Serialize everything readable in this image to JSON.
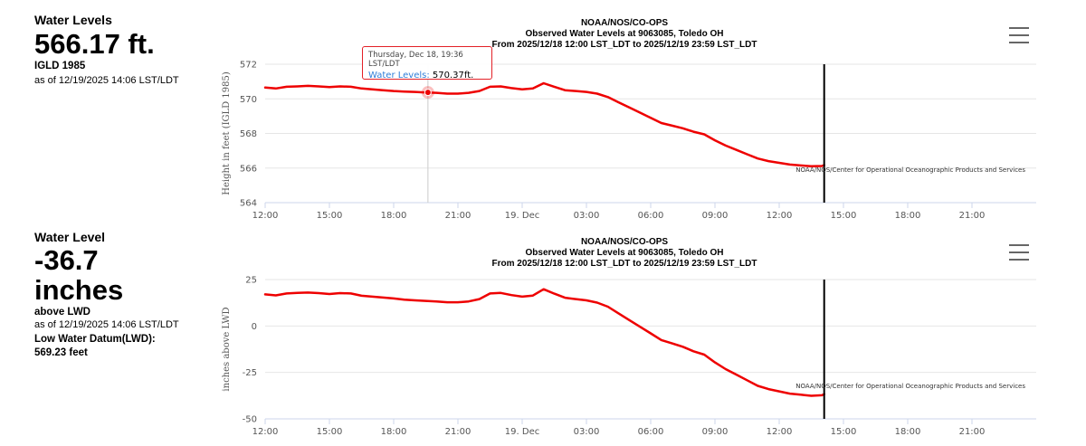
{
  "top": {
    "label": "Water Levels",
    "value": "566.17 ft.",
    "datum": "IGLD 1985",
    "asof": "as of 12/19/2025 14:06 LST/LDT"
  },
  "bottom": {
    "label": "Water Level",
    "value_line1": "-36.7",
    "value_line2": "inches",
    "datum": "above LWD",
    "asof": "as of 12/19/2025 14:06 LST/LDT",
    "lwd_label": "Low Water Datum(LWD):",
    "lwd_value": "569.23 feet"
  },
  "tooltip": {
    "header": "Thursday, Dec 18, 19:36 LST/LDT",
    "series": "Water Levels:",
    "value": "570.37ft."
  },
  "colors": {
    "series": "#ee0000",
    "cursor": "#000000",
    "grid": "#e6e6e6"
  },
  "chart_data": [
    {
      "type": "line",
      "title": [
        "NOAA/NOS/CO-OPS",
        "Observed Water Levels at 9063085, Toledo OH",
        "From 2025/12/18 12:00 LST_LDT to 2025/12/19 23:59 LST_LDT"
      ],
      "ylabel": "Height in feet (IGLD 1985)",
      "ylim": [
        564,
        572
      ],
      "yticks": [
        564,
        566,
        568,
        570,
        572
      ],
      "xlim": [
        0,
        36
      ],
      "xticks": [
        0,
        3,
        6,
        9,
        12,
        15,
        18,
        21,
        24,
        27,
        30,
        33
      ],
      "xtick_labels": [
        "12:00",
        "15:00",
        "18:00",
        "21:00",
        "19. Dec",
        "03:00",
        "06:00",
        "09:00",
        "12:00",
        "15:00",
        "18:00",
        "21:00"
      ],
      "credit": "NOAA/NOS/Center for Operational Oceanographic Products and Services",
      "cursor_x": 26.1,
      "hover_x": 7.6,
      "grid": true,
      "series": [
        {
          "x": [
            0,
            0.5,
            1,
            1.5,
            2,
            2.5,
            3,
            3.5,
            4,
            4.5,
            5,
            5.5,
            6,
            6.5,
            7,
            7.5,
            8,
            8.5,
            9,
            9.5,
            10,
            10.5,
            11,
            11.5,
            12,
            12.5,
            13,
            13.5,
            14,
            14.5,
            15,
            15.5,
            16,
            16.5,
            17,
            17.5,
            18,
            18.5,
            19,
            19.5,
            20,
            20.5,
            21,
            21.5,
            22,
            22.5,
            23,
            23.5,
            24,
            24.5,
            25,
            25.5,
            26,
            26.1
          ],
          "values": [
            570.65,
            570.6,
            570.7,
            570.72,
            570.75,
            570.72,
            570.68,
            570.72,
            570.7,
            570.6,
            570.55,
            570.5,
            570.45,
            570.42,
            570.4,
            570.37,
            570.35,
            570.3,
            570.3,
            570.35,
            570.45,
            570.7,
            570.72,
            570.62,
            570.55,
            570.6,
            570.9,
            570.7,
            570.5,
            570.45,
            570.4,
            570.3,
            570.1,
            569.8,
            569.5,
            569.2,
            568.9,
            568.6,
            568.45,
            568.3,
            568.1,
            567.95,
            567.6,
            567.3,
            567.05,
            566.8,
            566.55,
            566.4,
            566.3,
            566.2,
            566.15,
            566.1,
            566.12,
            566.17
          ]
        }
      ]
    },
    {
      "type": "line",
      "title": [
        "NOAA/NOS/CO-OPS",
        "Observed Water Levels at 9063085, Toledo OH",
        "From 2025/12/18 12:00 LST_LDT to 2025/12/19 23:59 LST_LDT"
      ],
      "ylabel": "inches above LWD",
      "ylim": [
        -50,
        25
      ],
      "yticks": [
        -50,
        -25,
        0,
        25
      ],
      "xlim": [
        0,
        36
      ],
      "xticks": [
        0,
        3,
        6,
        9,
        12,
        15,
        18,
        21,
        24,
        27,
        30,
        33
      ],
      "xtick_labels": [
        "12:00",
        "15:00",
        "18:00",
        "21:00",
        "19. Dec",
        "03:00",
        "06:00",
        "09:00",
        "12:00",
        "15:00",
        "18:00",
        "21:00"
      ],
      "credit": "NOAA/NOS/Center for Operational Oceanographic Products and Services",
      "cursor_x": 26.1,
      "grid": true,
      "series": [
        {
          "x": [
            0,
            0.5,
            1,
            1.5,
            2,
            2.5,
            3,
            3.5,
            4,
            4.5,
            5,
            5.5,
            6,
            6.5,
            7,
            7.5,
            8,
            8.5,
            9,
            9.5,
            10,
            10.5,
            11,
            11.5,
            12,
            12.5,
            13,
            13.5,
            14,
            14.5,
            15,
            15.5,
            16,
            16.5,
            17,
            17.5,
            18,
            18.5,
            19,
            19.5,
            20,
            20.5,
            21,
            21.5,
            22,
            22.5,
            23,
            23.5,
            24,
            24.5,
            25,
            25.5,
            26,
            26.1
          ],
          "values": [
            17,
            16.5,
            17.5,
            17.8,
            18,
            17.7,
            17.2,
            17.7,
            17.5,
            16.3,
            15.8,
            15.3,
            14.8,
            14.2,
            13.8,
            13.5,
            13.2,
            12.8,
            12.8,
            13.2,
            14.5,
            17.5,
            17.8,
            16.6,
            15.8,
            16.4,
            19.8,
            17.4,
            15.2,
            14.5,
            13.8,
            12.6,
            10.4,
            6.8,
            3.2,
            -0.4,
            -4,
            -7.6,
            -9.4,
            -11.2,
            -13.6,
            -15.4,
            -19.6,
            -23.2,
            -26.2,
            -29.2,
            -32.2,
            -34,
            -35.2,
            -36.4,
            -37,
            -37.6,
            -37.3,
            -36.7
          ]
        }
      ]
    }
  ]
}
